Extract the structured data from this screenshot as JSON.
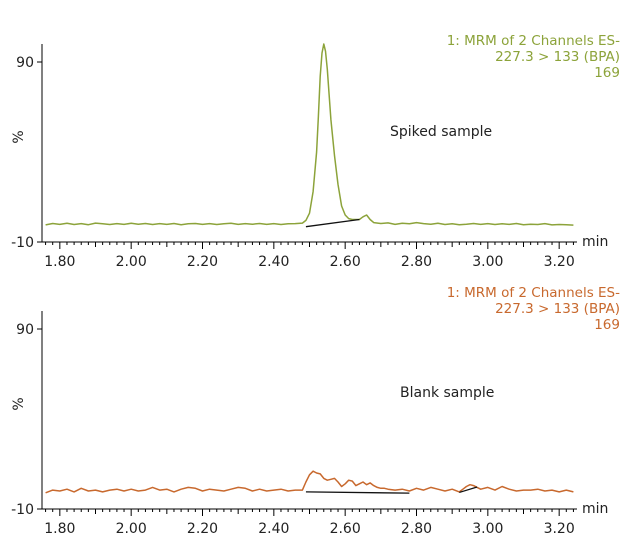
{
  "chart_data": [
    {
      "type": "line",
      "info_lines": [
        "1: MRM of 2 Channels ES-",
        "227.3 > 133 (BPA)",
        "169"
      ],
      "annotation": "Spiked sample",
      "ylabel": "%",
      "xunit": "min",
      "xlim": [
        1.75,
        3.25
      ],
      "ylim": [
        -10,
        100
      ],
      "yticks": [
        90,
        -10
      ],
      "xticks": [
        "1.80",
        "2.00",
        "2.20",
        "2.40",
        "2.60",
        "2.80",
        "3.00",
        "3.20"
      ],
      "color": "#8ca33a",
      "baseline_color": "#111111",
      "series": [
        {
          "x": [
            1.76,
            1.78,
            1.8,
            1.82,
            1.84,
            1.86,
            1.88,
            1.9,
            1.92,
            1.94,
            1.96,
            1.98,
            2.0,
            2.02,
            2.04,
            2.06,
            2.08,
            2.1,
            2.12,
            2.14,
            2.16,
            2.18,
            2.2,
            2.22,
            2.24,
            2.26,
            2.28,
            2.3,
            2.32,
            2.34,
            2.36,
            2.38,
            2.4,
            2.42,
            2.44,
            2.46,
            2.48,
            2.49,
            2.5,
            2.51,
            2.52,
            2.525,
            2.53,
            2.535,
            2.54,
            2.545,
            2.55,
            2.555,
            2.56,
            2.57,
            2.58,
            2.59,
            2.6,
            2.61,
            2.62,
            2.63,
            2.64,
            2.65,
            2.66,
            2.67,
            2.68,
            2.7,
            2.72,
            2.74,
            2.76,
            2.78,
            2.8,
            2.82,
            2.84,
            2.86,
            2.88,
            2.9,
            2.92,
            2.94,
            2.96,
            2.98,
            3.0,
            3.02,
            3.04,
            3.06,
            3.08,
            3.1,
            3.12,
            3.14,
            3.16,
            3.18,
            3.2,
            3.22,
            3.24
          ],
          "y": [
            -0.5,
            0.3,
            -0.2,
            0.4,
            -0.3,
            0.2,
            -0.4,
            0.5,
            0.1,
            -0.3,
            0.2,
            -0.2,
            0.4,
            -0.1,
            0.3,
            -0.3,
            0.2,
            -0.2,
            0.3,
            -0.4,
            0.1,
            0.3,
            -0.2,
            0.2,
            -0.3,
            0.1,
            0.4,
            -0.2,
            0.2,
            -0.1,
            0.3,
            -0.2,
            0.2,
            -0.3,
            0.1,
            0.2,
            0.5,
            2,
            6,
            18,
            40,
            60,
            82,
            95,
            100,
            96,
            86,
            72,
            58,
            38,
            22,
            10,
            5,
            3,
            2.5,
            2.5,
            2.5,
            4,
            5,
            2.5,
            0.8,
            0.3,
            0.6,
            -0.2,
            0.4,
            0.1,
            0.8,
            0.2,
            -0.1,
            0.4,
            -0.3,
            0.1,
            -0.4,
            -0.1,
            0.3,
            -0.2,
            0.2,
            -0.3,
            0.1,
            -0.2,
            0.3,
            -0.4,
            -0.1,
            -0.3,
            0.2,
            -0.5,
            -0.3,
            -0.4,
            -0.6
          ]
        }
      ],
      "integration_baseline": [
        [
          2.49,
          -1.5
        ],
        [
          2.64,
          2.5
        ]
      ]
    },
    {
      "type": "line",
      "info_lines": [
        "1: MRM of 2 Channels ES-",
        "227.3 > 133 (BPA)",
        "169"
      ],
      "annotation": "Blank sample",
      "ylabel": "%",
      "xunit": "min",
      "xlim": [
        1.75,
        3.25
      ],
      "ylim": [
        -10,
        100
      ],
      "yticks": [
        90,
        -10
      ],
      "xticks": [
        "1.80",
        "2.00",
        "2.20",
        "2.40",
        "2.60",
        "2.80",
        "3.00",
        "3.20"
      ],
      "color": "#c8692e",
      "baseline_color": "#111111",
      "series": [
        {
          "x": [
            1.76,
            1.78,
            1.8,
            1.82,
            1.84,
            1.86,
            1.88,
            1.9,
            1.92,
            1.94,
            1.96,
            1.98,
            2.0,
            2.02,
            2.04,
            2.06,
            2.08,
            2.1,
            2.12,
            2.14,
            2.16,
            2.18,
            2.2,
            2.22,
            2.24,
            2.26,
            2.28,
            2.3,
            2.32,
            2.34,
            2.36,
            2.38,
            2.4,
            2.42,
            2.44,
            2.46,
            2.48,
            2.49,
            2.5,
            2.51,
            2.52,
            2.53,
            2.54,
            2.55,
            2.56,
            2.57,
            2.58,
            2.59,
            2.6,
            2.61,
            2.62,
            2.63,
            2.64,
            2.65,
            2.66,
            2.67,
            2.68,
            2.69,
            2.7,
            2.71,
            2.72,
            2.74,
            2.76,
            2.78,
            2.8,
            2.82,
            2.84,
            2.86,
            2.88,
            2.9,
            2.92,
            2.93,
            2.94,
            2.95,
            2.96,
            2.97,
            2.98,
            3.0,
            3.02,
            3.04,
            3.06,
            3.08,
            3.1,
            3.12,
            3.14,
            3.16,
            3.18,
            3.2,
            3.22,
            3.24
          ],
          "y": [
            -1,
            0.5,
            0,
            1,
            -0.5,
            1.5,
            0,
            0.5,
            -0.5,
            0.5,
            1,
            0,
            1,
            0,
            0.5,
            2,
            0.5,
            1,
            -0.5,
            1,
            2,
            1.5,
            0,
            1,
            0.5,
            0,
            1,
            2,
            1.5,
            0,
            1,
            0,
            0.5,
            1,
            0,
            0.5,
            0.5,
            5,
            9,
            11,
            10,
            9.5,
            7,
            6,
            6.5,
            7,
            5,
            2.5,
            4,
            6,
            5.5,
            3,
            4,
            5,
            3.5,
            4.5,
            3,
            2,
            1.5,
            1.5,
            1,
            0.5,
            1,
            0,
            1.5,
            0.5,
            2,
            1,
            0,
            1,
            -0.5,
            1,
            2.5,
            3.5,
            3,
            2,
            1,
            2,
            0.5,
            2.5,
            1,
            0,
            0.5,
            0.5,
            1,
            0,
            0.5,
            -0.5,
            0.5,
            -0.5
          ]
        }
      ],
      "integration_baseline": [
        [
          2.49,
          -0.5
        ],
        [
          2.78,
          -1.2
        ]
      ],
      "integration_baseline_2": [
        [
          2.92,
          -0.8
        ],
        [
          2.97,
          2.2
        ]
      ]
    }
  ]
}
